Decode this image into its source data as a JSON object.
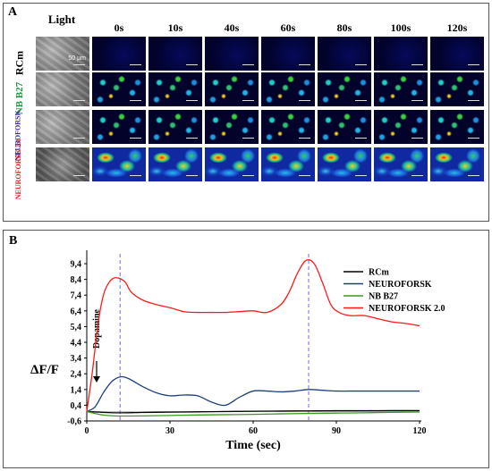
{
  "panel_a": {
    "label": "A",
    "columns": [
      "Light",
      "0s",
      "10s",
      "40s",
      "60s",
      "80s",
      "100s",
      "120s"
    ],
    "rows": [
      {
        "label": "RCm",
        "color": "#000000"
      },
      {
        "label": "NB B27",
        "color": "#1a9a3a"
      },
      {
        "label": "NEUROFORSK",
        "color": "#3a2ab0"
      },
      {
        "label": "NEUROFORSK 2.0",
        "color": "#e02020"
      }
    ],
    "scale_label": "50 µm"
  },
  "panel_b": {
    "label": "B",
    "annotation": "Dopamine"
  },
  "chart_data": {
    "type": "line",
    "xlabel": "Time (sec)",
    "ylabel": "ΔF/F",
    "xlim": [
      0,
      120
    ],
    "ylim": [
      -0.6,
      9.8
    ],
    "x_ticks": [
      "0",
      "30",
      "60",
      "90",
      "120"
    ],
    "x_tick_values": [
      0,
      30,
      60,
      90,
      120
    ],
    "y_ticks": [
      "-0,6",
      "0,4",
      "1,4",
      "2,4",
      "3,4",
      "4,4",
      "5,4",
      "6,4",
      "7,4",
      "8,4",
      "9,4"
    ],
    "y_tick_values": [
      -0.6,
      0.4,
      1.4,
      2.4,
      3.4,
      4.4,
      5.4,
      6.4,
      7.4,
      8.4,
      9.4
    ],
    "vlines": [
      12,
      80
    ],
    "legend_position": "top-right",
    "grid": false,
    "series": [
      {
        "name": "RCm",
        "color": "#000000",
        "x": [
          0,
          10,
          20,
          30,
          40,
          50,
          60,
          70,
          80,
          90,
          100,
          110,
          120
        ],
        "y": [
          0,
          -0.08,
          -0.06,
          -0.04,
          -0.02,
          0,
          0.02,
          0.03,
          0.04,
          0.05,
          0.05,
          0.06,
          0.06
        ]
      },
      {
        "name": "NEUROFORSK",
        "color": "#1f3f80",
        "x": [
          0,
          3,
          6,
          9,
          12,
          15,
          20,
          25,
          30,
          35,
          40,
          45,
          50,
          55,
          60,
          65,
          70,
          75,
          80,
          85,
          90,
          95,
          100,
          110,
          120
        ],
        "y": [
          0,
          0.3,
          1.2,
          1.9,
          2.2,
          2.1,
          1.6,
          1.2,
          1.0,
          1.05,
          1.0,
          0.6,
          0.4,
          0.9,
          1.3,
          1.3,
          1.25,
          1.3,
          1.4,
          1.35,
          1.3,
          1.3,
          1.3,
          1.3,
          1.3
        ]
      },
      {
        "name": "NB B27",
        "color": "#3a9a20",
        "x": [
          0,
          5,
          10,
          20,
          30,
          40,
          50,
          60,
          70,
          80,
          90,
          100,
          110,
          120
        ],
        "y": [
          0,
          -0.2,
          -0.28,
          -0.28,
          -0.25,
          -0.22,
          -0.2,
          -0.18,
          -0.15,
          -0.12,
          -0.1,
          -0.08,
          -0.05,
          -0.03
        ]
      },
      {
        "name": "NEUROFORSK 2.0",
        "color": "#ff1a1a",
        "x": [
          0,
          2,
          4,
          6,
          8,
          10,
          12,
          14,
          16,
          20,
          25,
          30,
          35,
          40,
          45,
          50,
          55,
          60,
          65,
          70,
          73,
          76,
          79,
          82,
          85,
          88,
          91,
          95,
          100,
          105,
          110,
          115,
          120
        ],
        "y": [
          0,
          2.5,
          5.5,
          7.4,
          8.2,
          8.5,
          8.45,
          8.2,
          7.6,
          7.1,
          6.8,
          6.6,
          6.35,
          6.3,
          6.3,
          6.3,
          6.35,
          6.4,
          6.3,
          6.8,
          7.6,
          8.8,
          9.6,
          9.4,
          8.2,
          6.8,
          6.3,
          6.1,
          6.1,
          5.9,
          5.7,
          5.6,
          5.45
        ]
      }
    ]
  }
}
